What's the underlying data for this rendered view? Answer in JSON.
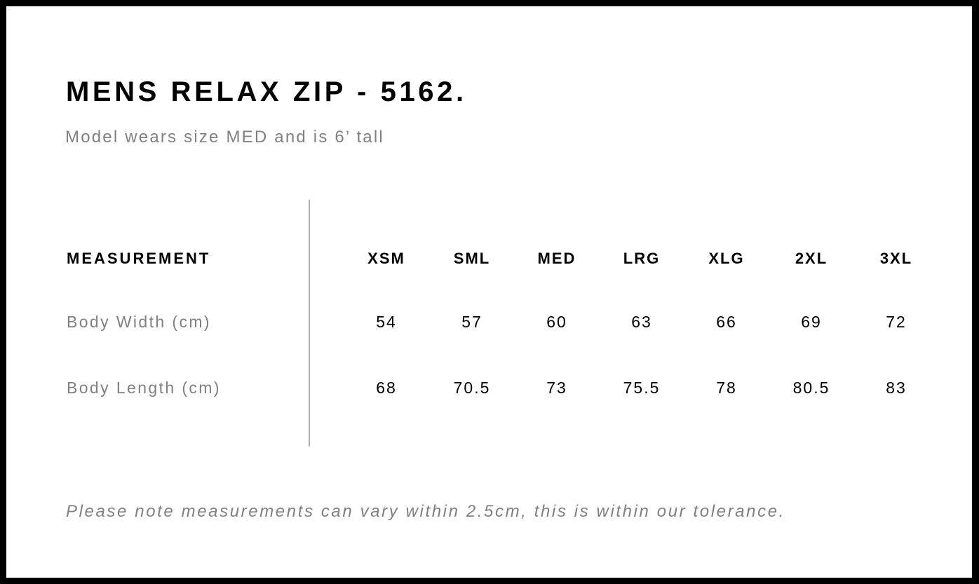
{
  "title": "MENS RELAX ZIP - 5162.",
  "subtitle": "Model wears size MED and is 6’ tall",
  "table": {
    "header_label": "MEASUREMENT",
    "sizes": [
      "XSM",
      "SML",
      "MED",
      "LRG",
      "XLG",
      "2XL",
      "3XL"
    ],
    "rows": [
      {
        "label": "Body Width (cm)",
        "values": [
          "54",
          "57",
          "60",
          "63",
          "66",
          "69",
          "72"
        ]
      },
      {
        "label": "Body Length (cm)",
        "values": [
          "68",
          "70.5",
          "73",
          "75.5",
          "78",
          "80.5",
          "83"
        ]
      }
    ]
  },
  "note": "Please note measurements can vary within 2.5cm, this is within our tolerance."
}
